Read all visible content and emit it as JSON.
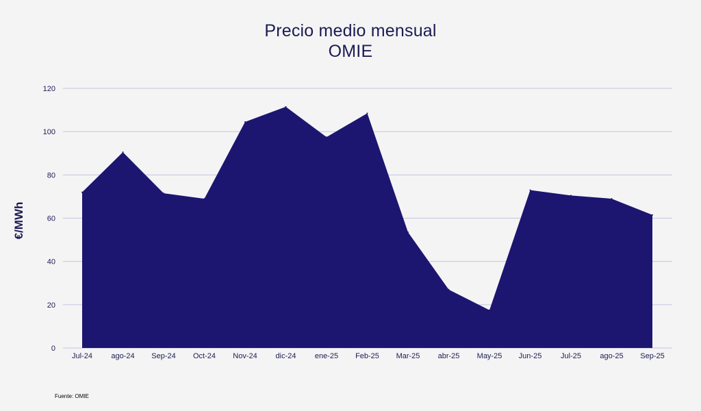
{
  "chart_data": {
    "type": "area",
    "title_lines": [
      "Precio medio mensual",
      "OMIE"
    ],
    "ylabel": "€/MWh",
    "xlabel": "",
    "ylim": [
      0,
      120
    ],
    "yticks": [
      0,
      20,
      40,
      60,
      80,
      100,
      120
    ],
    "categories": [
      "Jul-24",
      "ago-24",
      "Sep-24",
      "Oct-24",
      "Nov-24",
      "dic-24",
      "ene-25",
      "Feb-25",
      "Mar-25",
      "abr-25",
      "May-25",
      "Jun-25",
      "Jul-25",
      "ago-25",
      "Sep-25"
    ],
    "series": [
      {
        "values": [
          72,
          90.5,
          71.5,
          69,
          104.5,
          111.5,
          97.5,
          108.5,
          53.5,
          27,
          17.5,
          73,
          70.5,
          69,
          61.5
        ]
      }
    ],
    "grid": true,
    "legend": "none",
    "colors": {
      "fill": "#1c1670",
      "grid": "#c4c3e3",
      "text": "#1c1b54",
      "background": "#f4f4f4"
    }
  },
  "source_note": "Fuente: OMIE"
}
